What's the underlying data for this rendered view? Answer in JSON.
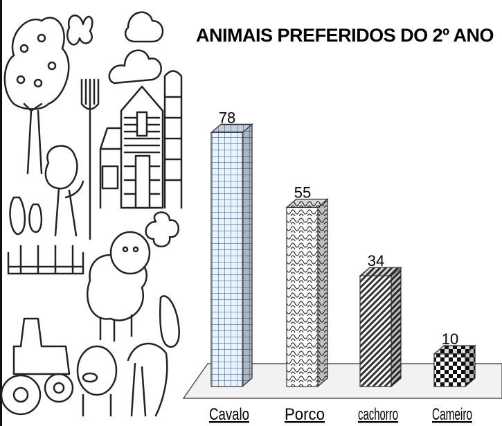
{
  "chart_data": {
    "type": "bar3d",
    "title": "ANIMAIS PREFERIDOS DO 2º ANO",
    "categories": [
      "Cavalo",
      "Porco",
      "cachorro",
      "Cameiro"
    ],
    "values": [
      78,
      55,
      34,
      10
    ]
  }
}
